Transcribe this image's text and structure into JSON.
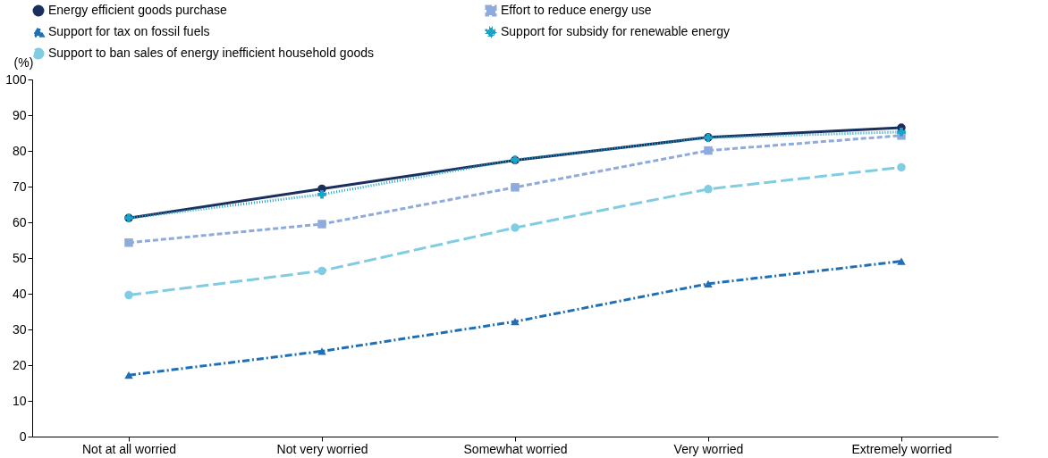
{
  "chart_data": {
    "type": "line",
    "ylabel": "(%)",
    "categories": [
      "Not at all worried",
      "Not very worried",
      "Somewhat worried",
      "Very worried",
      "Extremely worried"
    ],
    "series": [
      {
        "name": "Energy efficient goods purchase",
        "color": "#1b2f5e",
        "marker": "circle",
        "line_style": "solid",
        "values": [
          61.2,
          69.4,
          77.4,
          83.8,
          86.5
        ]
      },
      {
        "name": "Effort to reduce energy use",
        "color": "#8faadc",
        "marker": "square",
        "line_style": "dashed",
        "values": [
          54.3,
          59.5,
          69.8,
          80.1,
          84.3
        ]
      },
      {
        "name": "Support for tax on fossil fuels",
        "color": "#1f6fb5",
        "marker": "triangle",
        "line_style": "dashdot",
        "values": [
          17.2,
          23.9,
          32.2,
          42.8,
          49.1
        ]
      },
      {
        "name": "Support for subsidy for renewable energy",
        "color": "#1aa3c8",
        "marker": "cross",
        "line_style": "dotted",
        "values": [
          61.2,
          67.8,
          77.5,
          83.7,
          85.3
        ]
      },
      {
        "name": "Support to ban sales of energy inefficient household goods",
        "color": "#80cde3",
        "marker": "circle",
        "line_style": "longdash",
        "values": [
          39.6,
          46.4,
          58.5,
          69.3,
          75.4
        ]
      }
    ],
    "ylim": [
      0,
      100
    ],
    "yticks": [
      0,
      10,
      20,
      30,
      40,
      50,
      60,
      70,
      80,
      90,
      100
    ],
    "grid": false,
    "legend": "top"
  }
}
